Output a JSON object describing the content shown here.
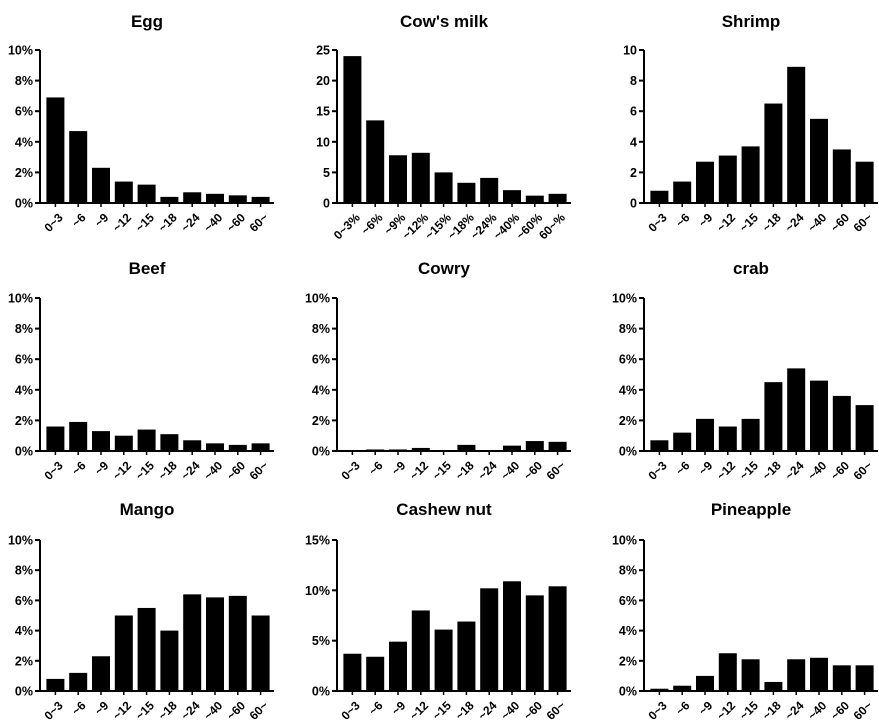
{
  "chart_data": [
    {
      "type": "bar",
      "title": "Egg",
      "categories": [
        "0~3",
        "~6",
        "~9",
        "~12",
        "~15",
        "~18",
        "~24",
        "~40",
        "~60",
        "60~"
      ],
      "values": [
        6.9,
        4.7,
        2.3,
        1.4,
        1.2,
        0.4,
        0.7,
        0.6,
        0.5,
        0.4
      ],
      "ylim": [
        0,
        10
      ],
      "yticks": [
        "0%",
        "2%",
        "4%",
        "6%",
        "8%",
        "10%"
      ]
    },
    {
      "type": "bar",
      "title": "Cow's milk",
      "categories": [
        "0~3%",
        "~6%",
        "~9%",
        "~12%",
        "~15%",
        "~18%",
        "~24%",
        "~40%",
        "~60%",
        "60~%"
      ],
      "values": [
        24,
        13.5,
        7.8,
        8.2,
        5.0,
        3.3,
        4.1,
        2.1,
        1.2,
        1.5
      ],
      "ylim": [
        0,
        25
      ],
      "yticks": [
        "0",
        "5",
        "10",
        "15",
        "20",
        "25"
      ]
    },
    {
      "type": "bar",
      "title": "Shrimp",
      "categories": [
        "0~3",
        "~6",
        "~9",
        "~12",
        "~15",
        "~18",
        "~24",
        "~40",
        "~60",
        "60~"
      ],
      "values": [
        0.8,
        1.4,
        2.7,
        3.1,
        3.7,
        6.5,
        8.9,
        5.5,
        3.5,
        2.7
      ],
      "ylim": [
        0,
        10
      ],
      "yticks": [
        "0",
        "2",
        "4",
        "6",
        "8",
        "10"
      ]
    },
    {
      "type": "bar",
      "title": "Beef",
      "categories": [
        "0~3",
        "~6",
        "~9",
        "~12",
        "~15",
        "~18",
        "~24",
        "~40",
        "~60",
        "60~"
      ],
      "values": [
        1.6,
        1.9,
        1.3,
        1.0,
        1.4,
        1.1,
        0.7,
        0.5,
        0.4,
        0.5
      ],
      "ylim": [
        0,
        10
      ],
      "yticks": [
        "0%",
        "2%",
        "4%",
        "6%",
        "8%",
        "10%"
      ]
    },
    {
      "type": "bar",
      "title": "Cowry",
      "categories": [
        "0~3",
        "~6",
        "~9",
        "~12",
        "~15",
        "~18",
        "~24",
        "~40",
        "~60",
        "60~"
      ],
      "values": [
        0,
        0.1,
        0.1,
        0.2,
        0,
        0.4,
        0,
        0.35,
        0.65,
        0.6
      ],
      "ylim": [
        0,
        10
      ],
      "yticks": [
        "0%",
        "2%",
        "4%",
        "6%",
        "8%",
        "10%"
      ]
    },
    {
      "type": "bar",
      "title": "crab",
      "categories": [
        "0~3",
        "~6",
        "~9",
        "~12",
        "~15",
        "~18",
        "~24",
        "~40",
        "~60",
        "60~"
      ],
      "values": [
        0.7,
        1.2,
        2.1,
        1.6,
        2.1,
        4.5,
        5.4,
        4.6,
        3.6,
        3.0
      ],
      "ylim": [
        0,
        10
      ],
      "yticks": [
        "0%",
        "2%",
        "4%",
        "6%",
        "8%",
        "10%"
      ]
    },
    {
      "type": "bar",
      "title": "Mango",
      "categories": [
        "0~3",
        "~6",
        "~9",
        "~12",
        "~15",
        "~18",
        "~24",
        "~40",
        "~60",
        "60~"
      ],
      "values": [
        0.8,
        1.2,
        2.3,
        5.0,
        5.5,
        4.0,
        6.4,
        6.2,
        6.3,
        5.0
      ],
      "ylim": [
        0,
        10
      ],
      "yticks": [
        "0%",
        "2%",
        "4%",
        "6%",
        "8%",
        "10%"
      ]
    },
    {
      "type": "bar",
      "title": "Cashew nut",
      "categories": [
        "0~3",
        "~6",
        "~9",
        "~12",
        "~15",
        "~18",
        "~24",
        "~40",
        "~60",
        "60~"
      ],
      "values": [
        3.7,
        3.4,
        4.9,
        8.0,
        6.1,
        6.9,
        10.2,
        10.9,
        9.5,
        10.4
      ],
      "ylim": [
        0,
        15
      ],
      "yticks": [
        "0%",
        "5%",
        "10%",
        "15%"
      ]
    },
    {
      "type": "bar",
      "title": "Pineapple",
      "categories": [
        "0~3",
        "~6",
        "~9",
        "~12",
        "~15",
        "~18",
        "~24",
        "~40",
        "~60",
        "60~"
      ],
      "values": [
        0.15,
        0.35,
        1.0,
        2.5,
        2.1,
        0.6,
        2.1,
        2.2,
        1.7,
        1.7
      ],
      "ylim": [
        0,
        10
      ],
      "yticks": [
        "0%",
        "2%",
        "4%",
        "6%",
        "8%",
        "10%"
      ]
    }
  ]
}
